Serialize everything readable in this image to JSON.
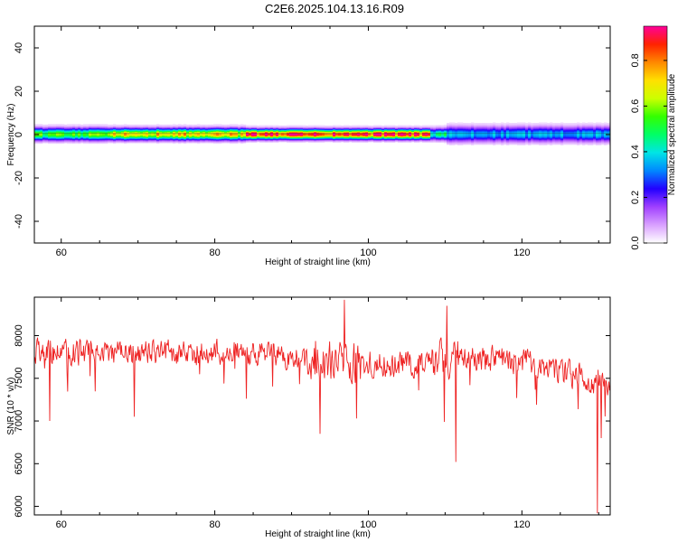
{
  "figure_title": "C2E6.2025.104.13.16.R09",
  "colors": {
    "snr_line": "#ee2222",
    "axis": "#000000",
    "background": "#ffffff",
    "colormap": [
      "#ffffff",
      "#d9a0ff",
      "#a040ff",
      "#2200ff",
      "#0088ff",
      "#00e5e5",
      "#00ff66",
      "#33ff00",
      "#ccff00",
      "#ffe000",
      "#ff8800",
      "#ff2200",
      "#ff0099"
    ]
  },
  "chart_data": [
    {
      "type": "heatmap",
      "id": "spectrogram",
      "xlabel": "Height of straight line (km)",
      "ylabel": "Frequency (Hz)",
      "xlim": [
        56.5,
        131.5
      ],
      "ylim": [
        -50,
        50
      ],
      "xticks": [
        60,
        80,
        100,
        120
      ],
      "yticks": [
        -40,
        -20,
        0,
        20,
        40
      ],
      "colorbar": {
        "label": "Normalized spectral amplitude",
        "range": [
          0,
          0.95
        ],
        "ticks": [
          0,
          0.2,
          0.4,
          0.6,
          0.8
        ],
        "tick_labels": [
          "0.0",
          "0.2",
          "0.4",
          "0.6",
          "0.8"
        ]
      },
      "band": {
        "center_hz": 0.5,
        "segments": [
          {
            "x_start": 56.5,
            "x_end": 66,
            "peak_amplitude": 0.55,
            "half_width_hz": 3.2
          },
          {
            "x_start": 66,
            "x_end": 84,
            "peak_amplitude": 0.72,
            "half_width_hz": 3.0
          },
          {
            "x_start": 84,
            "x_end": 108,
            "peak_amplitude": 0.88,
            "half_width_hz": 2.6
          },
          {
            "x_start": 108,
            "x_end": 110,
            "peak_amplitude": 0.45,
            "half_width_hz": 3.0
          },
          {
            "x_start": 110,
            "x_end": 131.5,
            "peak_amplitude": 0.35,
            "half_width_hz": 4.0
          }
        ]
      }
    },
    {
      "type": "line",
      "id": "snr",
      "xlabel": "Height of straight line (km)",
      "ylabel": "SNR (10 * v/v)",
      "xlim": [
        56.5,
        131.5
      ],
      "ylim": [
        5900,
        8450
      ],
      "xticks": [
        60,
        80,
        100,
        120
      ],
      "yticks": [
        6000,
        6500,
        7000,
        7500,
        8000
      ],
      "series": [
        {
          "x_start": 56.5,
          "x_end": 131.5,
          "samples": 900,
          "trend": [
            {
              "x": 56.5,
              "y": 7800
            },
            {
              "x": 70,
              "y": 7800
            },
            {
              "x": 85,
              "y": 7800
            },
            {
              "x": 95,
              "y": 7700
            },
            {
              "x": 105,
              "y": 7650
            },
            {
              "x": 112,
              "y": 7750
            },
            {
              "x": 120,
              "y": 7700
            },
            {
              "x": 126,
              "y": 7550
            },
            {
              "x": 131.5,
              "y": 7400
            }
          ],
          "noise_amplitude": 160,
          "spikes": [
            {
              "x": 58.5,
              "y": 7000
            },
            {
              "x": 69.5,
              "y": 7050
            },
            {
              "x": 93.7,
              "y": 6850
            },
            {
              "x": 96.9,
              "y": 8420
            },
            {
              "x": 98.5,
              "y": 7030
            },
            {
              "x": 110.2,
              "y": 8350
            },
            {
              "x": 111.4,
              "y": 6520
            },
            {
              "x": 129.8,
              "y": 5920
            },
            {
              "x": 130.3,
              "y": 6800
            }
          ]
        }
      ]
    }
  ]
}
